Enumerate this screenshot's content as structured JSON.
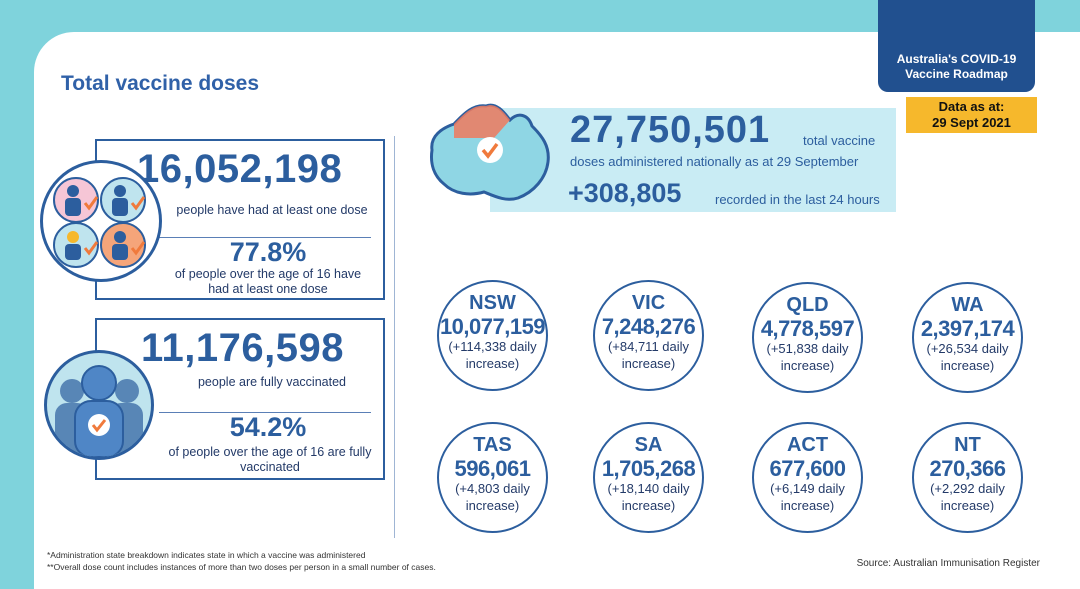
{
  "title": "Total vaccine doses",
  "roadmap": {
    "line1": "Australia's COVID-19",
    "line2": "Vaccine Roadmap"
  },
  "data_date": {
    "line1": "Data as at:",
    "line2": "29 Sept 2021"
  },
  "first_dose": {
    "count": "16,052,198",
    "label": "people have had at least one dose",
    "percent": "77.8%",
    "percent_label": "of people over the age of 16 have had at least one dose"
  },
  "fully_vaccinated": {
    "count": "11,176,598",
    "label": "people are fully vaccinated",
    "percent": "54.2%",
    "percent_label": "of people over the age of 16 are fully vaccinated"
  },
  "total": {
    "count": "27,750,501",
    "label_1": "total vaccine",
    "label_2": "doses administered nationally as at 29 September",
    "daily": "+308,805",
    "daily_label": "recorded in the last 24 hours"
  },
  "states": [
    {
      "name": "NSW",
      "total": "10,077,159",
      "increase": "(+114,338 daily",
      "increase2": "increase)"
    },
    {
      "name": "VIC",
      "total": "7,248,276",
      "increase": "(+84,711 daily",
      "increase2": "increase)"
    },
    {
      "name": "QLD",
      "total": "4,778,597",
      "increase": "(+51,838 daily",
      "increase2": "increase)"
    },
    {
      "name": "WA",
      "total": "2,397,174",
      "increase": "(+26,534 daily",
      "increase2": "increase)"
    },
    {
      "name": "TAS",
      "total": "596,061",
      "increase": "(+4,803 daily",
      "increase2": "increase)"
    },
    {
      "name": "SA",
      "total": "1,705,268",
      "increase": "(+18,140 daily",
      "increase2": "increase)"
    },
    {
      "name": "ACT",
      "total": "677,600",
      "increase": "(+6,149 daily",
      "increase2": "increase)"
    },
    {
      "name": "NT",
      "total": "270,366",
      "increase": "(+2,292 daily",
      "increase2": "increase)"
    }
  ],
  "footnotes": [
    "*Administration state breakdown indicates state in which a vaccine was administered",
    "**Overall dose count includes instances of more than two doses per person in a small number of cases."
  ],
  "source": "Source: Australian Immunisation Register",
  "colors": {
    "primary": "#2c5e9e",
    "accent": "#f6b82c",
    "check": "#f07a3c",
    "banner": "#c9ecf4"
  },
  "icons": [
    "people-checkmark-icon",
    "crowd-checkmark-icon",
    "australia-map-check-icon"
  ]
}
